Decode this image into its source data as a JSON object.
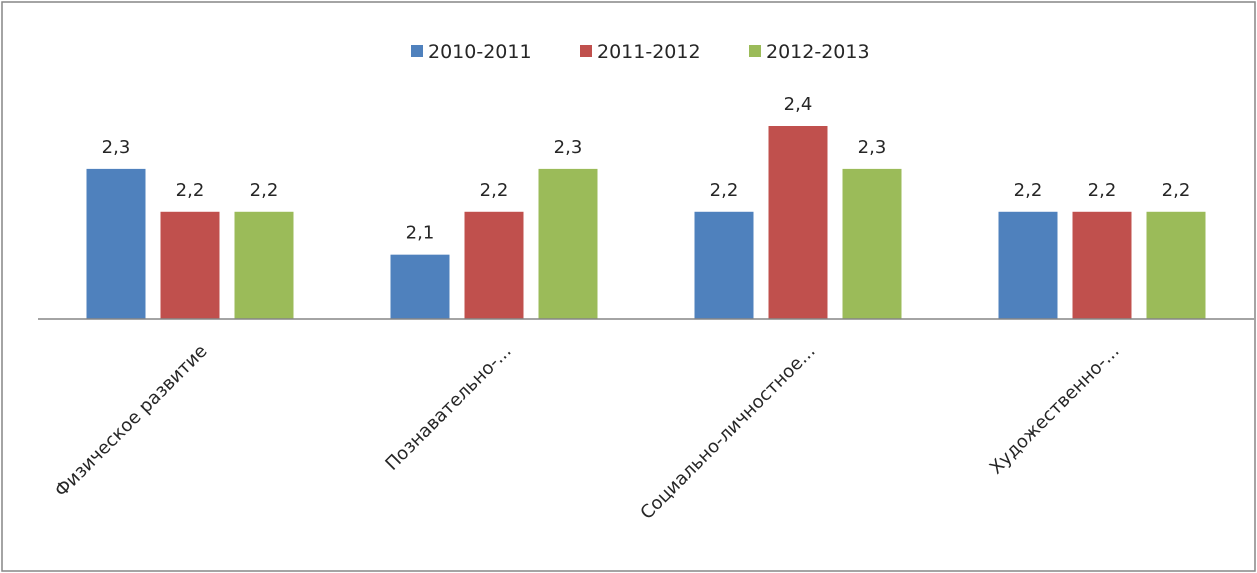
{
  "chart_data": {
    "type": "bar",
    "title": "",
    "xlabel": "",
    "ylabel": "",
    "categories": [
      "Физическое развитие",
      "Познавательно-...",
      "Социально-личностное...",
      "Художественно-..."
    ],
    "series": [
      {
        "name": "2010-2011",
        "color": "#4F81BD",
        "values": [
          2.3,
          2.1,
          2.2,
          2.2
        ],
        "labels": [
          "2,3",
          "2,1",
          "2,2",
          "2,2"
        ]
      },
      {
        "name": "2011-2012",
        "color": "#C0504D",
        "values": [
          2.2,
          2.2,
          2.4,
          2.2
        ],
        "labels": [
          "2,2",
          "2,2",
          "2,4",
          "2,2"
        ]
      },
      {
        "name": "2012-2013",
        "color": "#9BBB59",
        "values": [
          2.2,
          2.3,
          2.3,
          2.2
        ],
        "labels": [
          "2,2",
          "2,3",
          "2,3",
          "2,2"
        ]
      }
    ],
    "ylim": [
      1.95,
      2.4
    ],
    "grid": false,
    "legend_position": "top",
    "axis_color": "#868686",
    "border_color": "#868686"
  }
}
